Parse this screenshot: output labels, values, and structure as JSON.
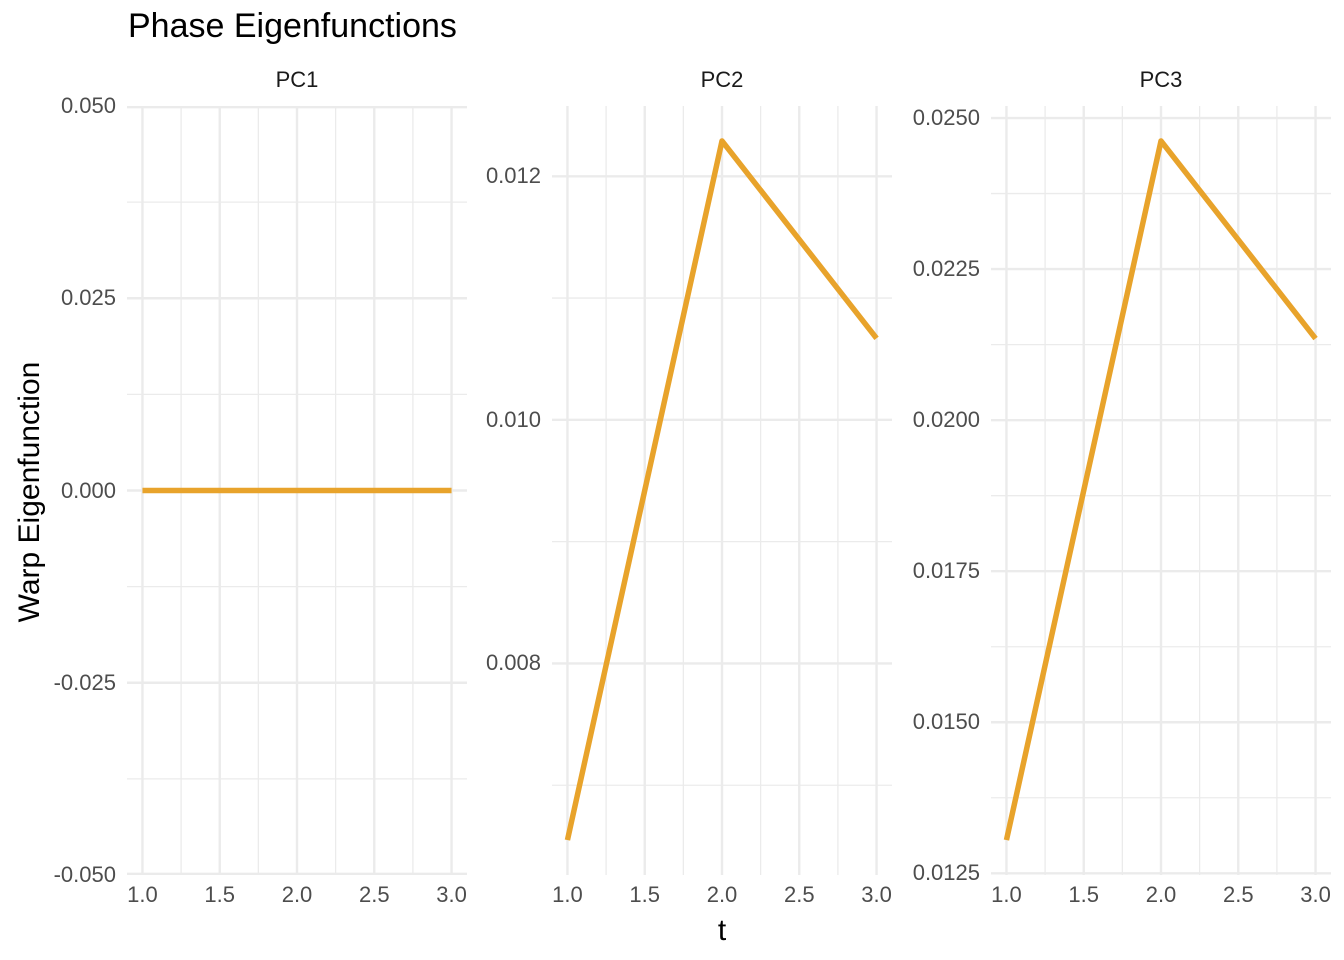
{
  "figure": {
    "title": "Phase Eigenfunctions",
    "x_axis_label": "t",
    "y_axis_label": "Warp Eigenfunction"
  },
  "chart_data": {
    "type": "line",
    "title": "Phase Eigenfunctions",
    "xlabel": "t",
    "ylabel": "Warp Eigenfunction",
    "legend": "none",
    "grid": true,
    "x": [
      1.0,
      2.0,
      3.0
    ],
    "xlim": [
      0.9,
      3.1
    ],
    "x_ticks": [
      {
        "value": 1.0,
        "label": "1.0"
      },
      {
        "value": 1.5,
        "label": "1.5"
      },
      {
        "value": 2.0,
        "label": "2.0"
      },
      {
        "value": 2.5,
        "label": "2.5"
      },
      {
        "value": 3.0,
        "label": "3.0"
      }
    ],
    "x_minor": [
      1.25,
      1.75,
      2.25,
      2.75
    ],
    "facets": [
      {
        "title": "PC1",
        "y": [
          0.0,
          0.0,
          0.0
        ],
        "ylim": [
          -0.05,
          0.05
        ],
        "y_ticks": [
          {
            "value": 0.05,
            "label": "0.050"
          },
          {
            "value": 0.025,
            "label": "0.025"
          },
          {
            "value": 0.0,
            "label": "0.000"
          },
          {
            "value": -0.025,
            "label": "-0.025"
          },
          {
            "value": -0.05,
            "label": "-0.050"
          }
        ],
        "y_minor": [
          0.0375,
          0.0125,
          -0.0125,
          -0.0375
        ]
      },
      {
        "title": "PC2",
        "y": [
          0.00655,
          0.01229,
          0.01067
        ],
        "ylim": [
          0.006263,
          0.012577
        ],
        "y_ticks": [
          {
            "value": 0.012,
            "label": "0.012"
          },
          {
            "value": 0.01,
            "label": "0.010"
          },
          {
            "value": 0.008,
            "label": "0.008"
          }
        ],
        "y_minor": [
          0.011,
          0.009,
          0.007
        ]
      },
      {
        "title": "PC3",
        "y": [
          0.01305,
          0.02462,
          0.02135
        ],
        "ylim": [
          0.012472,
          0.025199
        ],
        "y_ticks": [
          {
            "value": 0.025,
            "label": "0.0250"
          },
          {
            "value": 0.0225,
            "label": "0.0225"
          },
          {
            "value": 0.02,
            "label": "0.0200"
          },
          {
            "value": 0.0175,
            "label": "0.0175"
          },
          {
            "value": 0.015,
            "label": "0.0150"
          },
          {
            "value": 0.0125,
            "label": "0.0125"
          }
        ],
        "y_minor": [
          0.02375,
          0.02125,
          0.01875,
          0.01625,
          0.01375
        ]
      }
    ],
    "colors": {
      "line": "#E8A32B",
      "grid_major": "#EBEBEB",
      "grid_minor": "#EBEBEB",
      "tick_text": "#4D4D4D",
      "strip_text": "#1A1A1A",
      "title_text": "#000000",
      "background": "#FFFFFF"
    }
  }
}
